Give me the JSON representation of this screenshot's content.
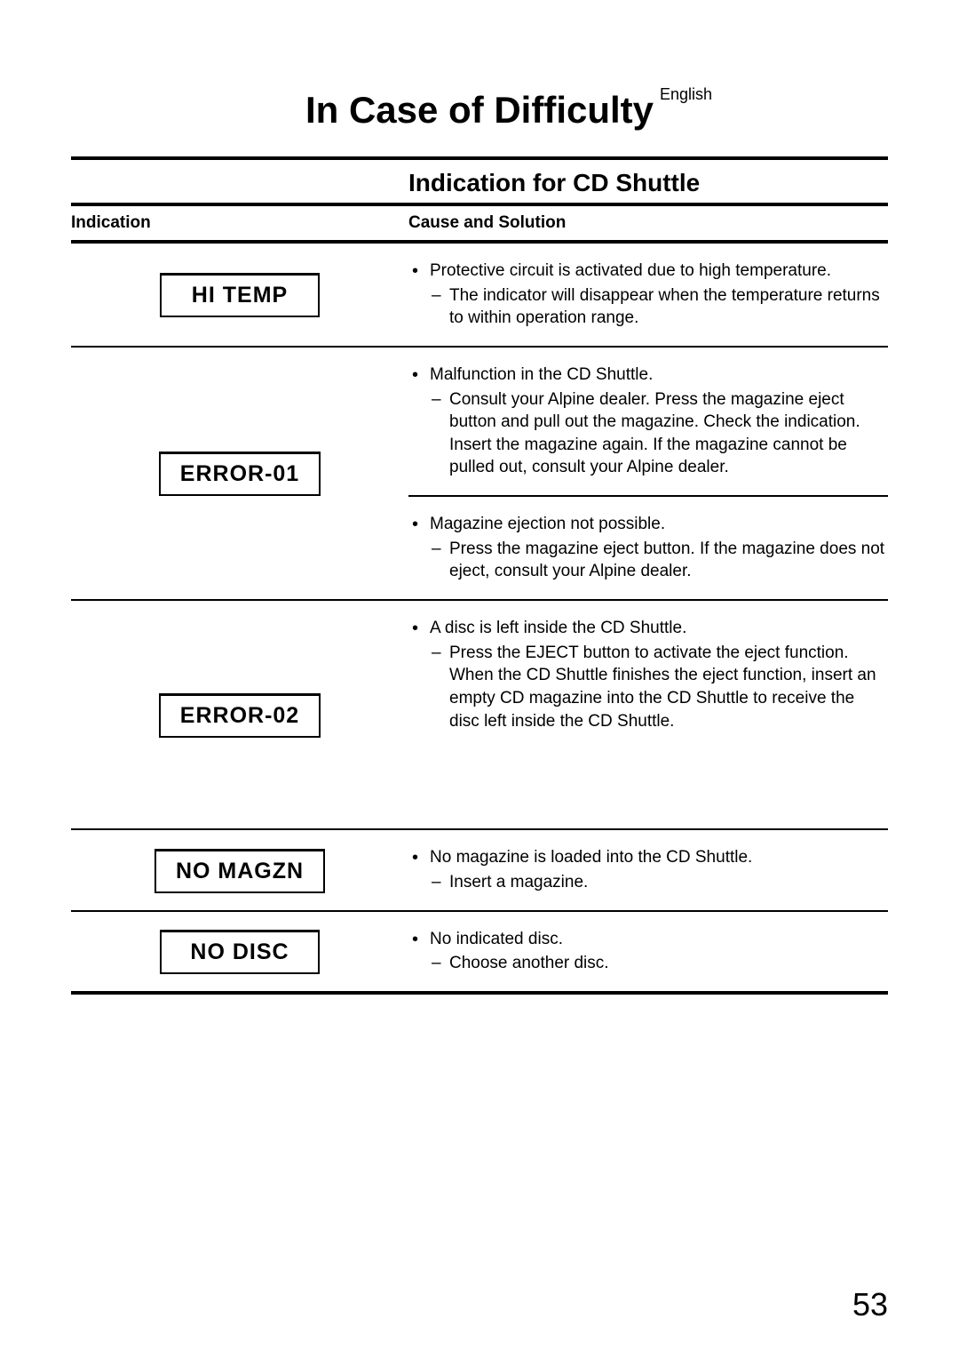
{
  "language": "English",
  "main_title": "In Case of Difficulty",
  "section_title": "Indication for CD Shuttle",
  "columns": {
    "left": "Indication",
    "right": "Cause and Solution"
  },
  "rows": [
    {
      "indicator": "HI TEMP",
      "blocks": [
        {
          "cause": "Protective circuit is activated due to high temperature.",
          "solutions": [
            "The indicator will disappear when the temperature returns to within operation range."
          ]
        }
      ]
    },
    {
      "indicator": "ERROR-01",
      "blocks": [
        {
          "cause": "Malfunction in the CD Shuttle.",
          "solutions": [
            "Consult your Alpine dealer. Press the magazine eject button and pull out the magazine. Check the indication. Insert the magazine again. If the magazine cannot be pulled out, consult your Alpine dealer."
          ]
        },
        {
          "cause": "Magazine ejection not possible.",
          "solutions": [
            "Press the magazine eject button. If the magazine does not eject, consult your Alpine dealer."
          ]
        }
      ]
    },
    {
      "indicator": "ERROR-02",
      "blocks": [
        {
          "cause": "A disc is left inside the CD Shuttle.",
          "solutions": [
            "Press the EJECT button to activate the eject function. When the CD Shuttle finishes the eject function, insert an empty CD magazine into the CD Shuttle to receive the disc left inside the CD Shuttle."
          ]
        }
      ],
      "extra_space": true
    },
    {
      "indicator": "NO MAGZN",
      "blocks": [
        {
          "cause": "No magazine is loaded into the CD Shuttle.",
          "solutions": [
            "Insert a magazine."
          ]
        }
      ]
    },
    {
      "indicator": "NO DISC",
      "blocks": [
        {
          "cause": "No indicated disc.",
          "solutions": [
            "Choose another disc."
          ]
        }
      ]
    }
  ],
  "page_number": "53"
}
